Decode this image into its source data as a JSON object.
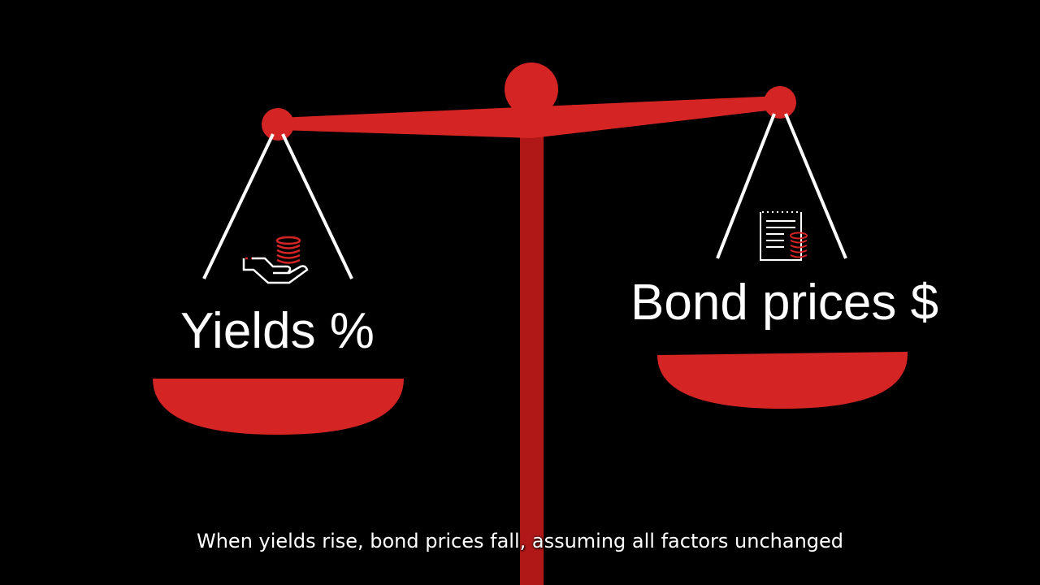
{
  "scale": {
    "left_pan": {
      "label": "Yields %",
      "icon": "hand-with-coins-icon"
    },
    "right_pan": {
      "label": "Bond prices $",
      "icon": "document-with-coins-icon"
    }
  },
  "subtitle": "When yields rise, bond prices fall, assuming all factors unchanged",
  "colors": {
    "accent": "#d42424",
    "pillar": "#b01818",
    "background": "#000000",
    "line": "#ffffff"
  }
}
